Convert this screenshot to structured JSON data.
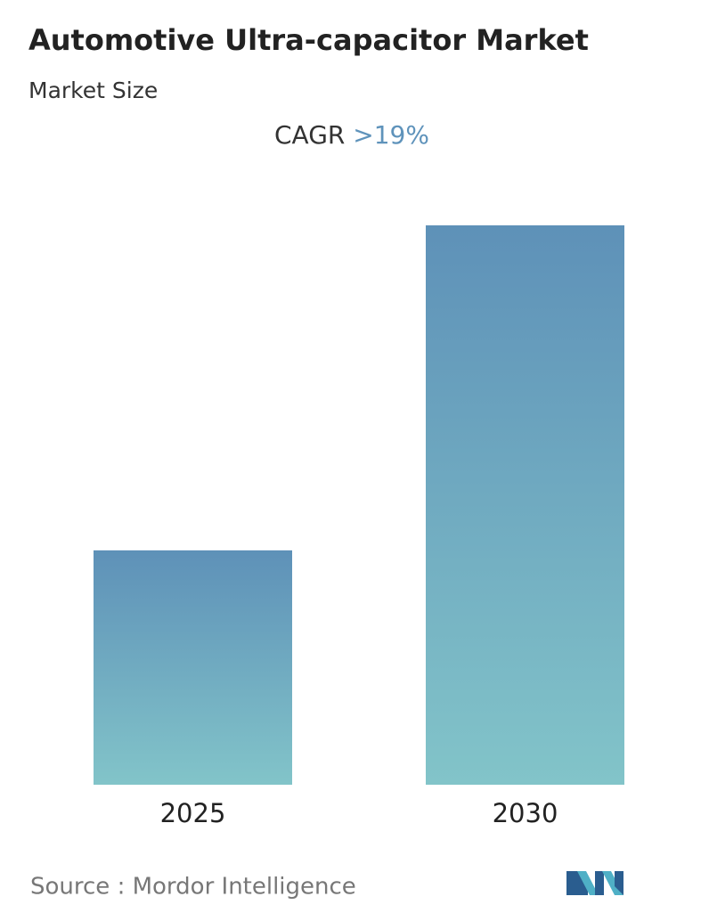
{
  "chart_data": {
    "type": "bar",
    "title": "Automotive Ultra-capacitor Market",
    "subtitle": "Market Size",
    "cagr_label": "CAGR",
    "cagr_value": ">19%",
    "categories": [
      "2025",
      "2030"
    ],
    "values": [
      41.9,
      100
    ],
    "gradient": [
      "#5e91b8",
      "#82c4c9"
    ],
    "source": "Source :  Mordor Intelligence"
  }
}
